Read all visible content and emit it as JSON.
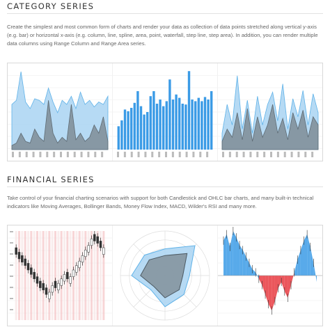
{
  "category": {
    "title": "CATEGORY SERIES",
    "description": "Create the simplest and most common form of charts and render your data as collection of data points stretched along vertical y-axis (e.g. bar) or horizontal x-axis (e.g. column, line, spline, area, point, waterfall, step line, step area). In addition, you can render multiple data columns using Range Column and Range Area series."
  },
  "financial": {
    "title": "FINANCIAL SERIES",
    "description": "Take control of your financial charting scenarios with support for both Candlestick and OHLC bar charts, and many built-in technical indicators like Moving Averages, Bollinger Bands, Money Flow Index, MACD, Wilder's RSI and many more."
  },
  "colors": {
    "area_light": "#aed6f3",
    "area_line": "#5fb2e8",
    "dark_area": "#7f8c95",
    "bar_blue": "#3b9be6",
    "red": "#e8393f",
    "pink": "#f5c5c6"
  },
  "chart_data": [
    {
      "type": "area",
      "series": [
        {
          "values": [
            55,
            60,
            95,
            58,
            50,
            62,
            60,
            55,
            75,
            58,
            45,
            60,
            55,
            65,
            50,
            70,
            55,
            60,
            52,
            58,
            55,
            65
          ]
        },
        {
          "values": [
            5,
            8,
            20,
            10,
            8,
            25,
            15,
            10,
            60,
            20,
            8,
            15,
            10,
            55,
            12,
            20,
            10,
            15,
            30,
            20,
            40,
            10
          ]
        }
      ]
    },
    {
      "type": "bar",
      "values": [
        28,
        35,
        48,
        46,
        50,
        56,
        70,
        52,
        42,
        45,
        64,
        70,
        55,
        60,
        52,
        58,
        84,
        60,
        66,
        62,
        55,
        54,
        94,
        60,
        58,
        62,
        58,
        63,
        60,
        70
      ]
    },
    {
      "type": "area",
      "series": [
        {
          "values": [
            20,
            55,
            30,
            90,
            25,
            60,
            20,
            65,
            30,
            55,
            70,
            35,
            80,
            25,
            62,
            40,
            72,
            30,
            68,
            45
          ]
        },
        {
          "values": [
            10,
            25,
            15,
            45,
            12,
            50,
            10,
            40,
            15,
            30,
            55,
            20,
            38,
            12,
            45,
            25,
            48,
            15,
            40,
            30
          ]
        }
      ]
    },
    {
      "type": "candlestick",
      "values": [
        62,
        58,
        55,
        52,
        48,
        44,
        40,
        36,
        32,
        30,
        26,
        22,
        28,
        32,
        30,
        34,
        38,
        40,
        36,
        42,
        46,
        50,
        55,
        60,
        64,
        70,
        74,
        72,
        68,
        62
      ]
    },
    {
      "type": "radar",
      "series": [
        {
          "values": [
            60,
            95,
            55,
            60,
            70,
            45,
            75,
            65
          ]
        },
        {
          "values": [
            45,
            70,
            40,
            45,
            50,
            35,
            55,
            50
          ]
        }
      ]
    },
    {
      "type": "area",
      "values": [
        55,
        65,
        45,
        70,
        60,
        48,
        40,
        30,
        20,
        10,
        5,
        -5,
        -15,
        -30,
        -45,
        -55,
        -40,
        -20,
        -10,
        -25,
        -35,
        -15,
        5,
        25,
        40,
        55,
        65,
        45,
        20,
        -10
      ]
    }
  ]
}
